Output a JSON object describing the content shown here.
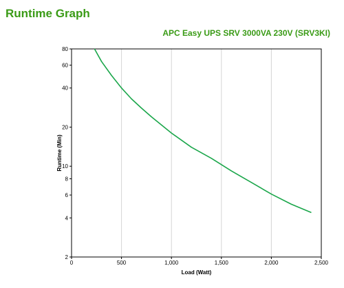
{
  "page": {
    "title": "Runtime Graph"
  },
  "chart_data": {
    "type": "line",
    "title": "APC Easy UPS SRV 3000VA 230V (SRV3KI)",
    "xlabel": "Load (Watt)",
    "ylabel": "Runtime (Min)",
    "xlim": [
      0,
      2500
    ],
    "ylim": [
      2,
      80
    ],
    "yscale": "log",
    "grid": true,
    "x_ticks": [
      0,
      500,
      1000,
      1500,
      2000,
      2500
    ],
    "x_tick_labels": [
      "0",
      "500",
      "1,000",
      "1,500",
      "2,000",
      "2,500"
    ],
    "y_ticks": [
      2,
      4,
      6,
      8,
      10,
      20,
      40,
      60,
      80
    ],
    "y_tick_labels": [
      "2",
      "4",
      "6",
      "8",
      "10",
      "20",
      "40",
      "60",
      "80"
    ],
    "series": [
      {
        "color": "#1aa64a",
        "x": [
          230,
          300,
          400,
          500,
          600,
          700,
          800,
          1000,
          1200,
          1400,
          1600,
          1800,
          2000,
          2200,
          2400
        ],
        "y": [
          80,
          64,
          50,
          40,
          33,
          28,
          24,
          18,
          14,
          11.5,
          9.2,
          7.5,
          6.1,
          5.1,
          4.4
        ]
      }
    ]
  }
}
